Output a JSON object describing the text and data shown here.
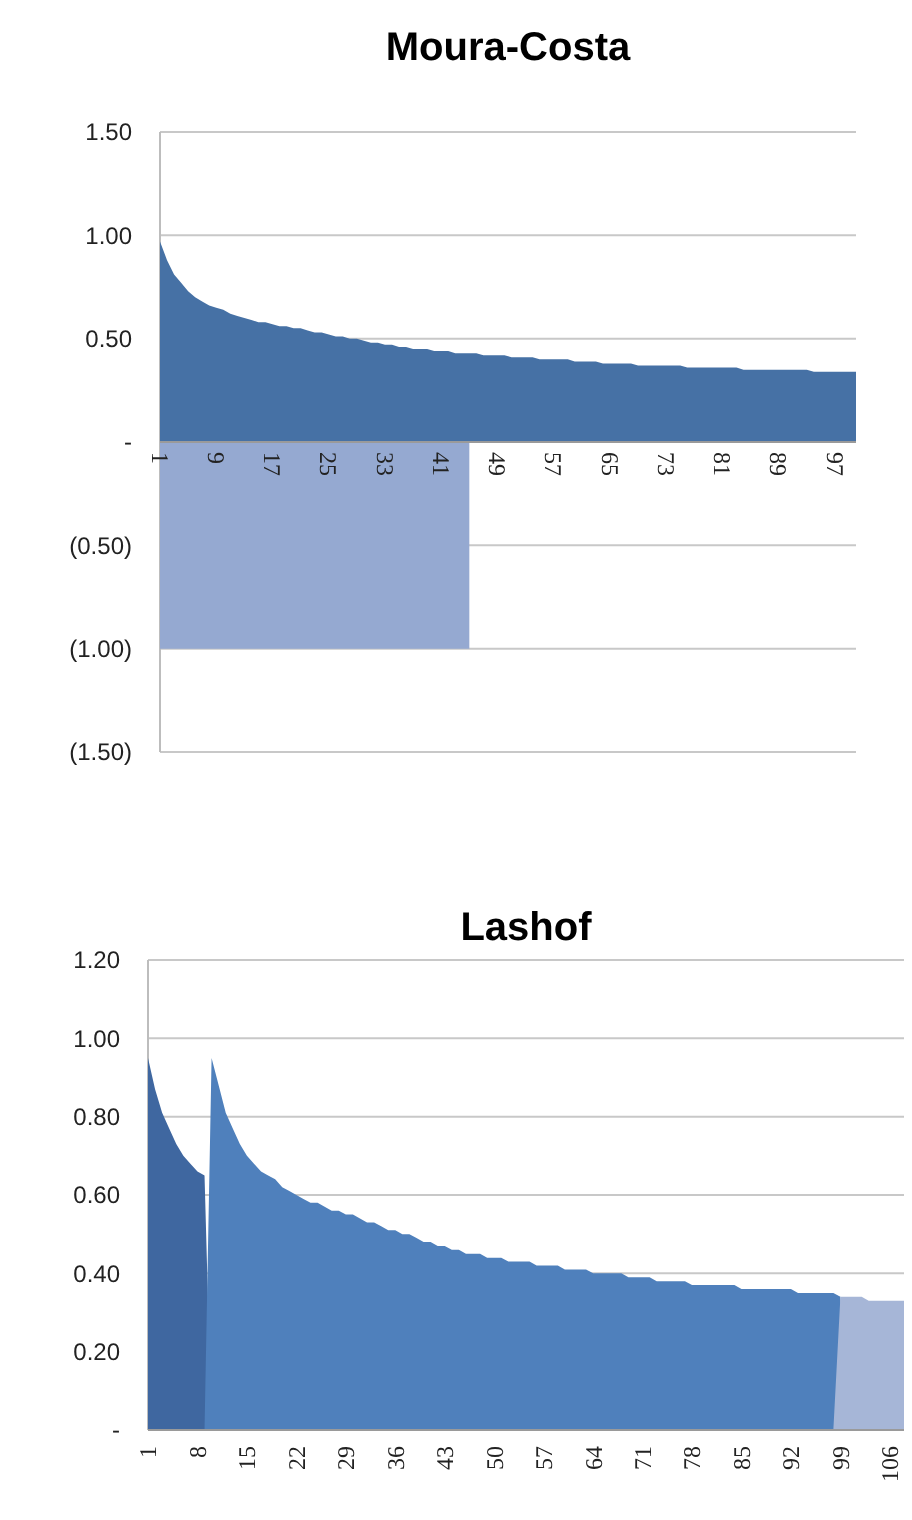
{
  "chart_data": [
    {
      "type": "area",
      "title": "Moura-Costa",
      "categories": [
        "1",
        null,
        null,
        null,
        null,
        null,
        null,
        null,
        "9",
        null,
        null,
        null,
        null,
        null,
        null,
        null,
        "17",
        null,
        null,
        null,
        null,
        null,
        null,
        null,
        "25",
        null,
        null,
        null,
        null,
        null,
        null,
        null,
        "33",
        null,
        null,
        null,
        null,
        null,
        null,
        null,
        "41",
        null,
        null,
        null,
        null,
        null,
        null,
        null,
        "49",
        null,
        null,
        null,
        null,
        null,
        null,
        null,
        "57",
        null,
        null,
        null,
        null,
        null,
        null,
        null,
        "65",
        null,
        null,
        null,
        null,
        null,
        null,
        null,
        "73",
        null,
        null,
        null,
        null,
        null,
        null,
        null,
        "81",
        null,
        null,
        null,
        null,
        null,
        null,
        null,
        "89",
        null,
        null,
        null,
        null,
        null,
        null,
        null,
        "97",
        null,
        null,
        null
      ],
      "series": [
        {
          "color": "#4671a5",
          "values": [
            0.97,
            0.88,
            0.81,
            0.77,
            0.73,
            0.7,
            0.68,
            0.66,
            0.65,
            0.64,
            0.62,
            0.61,
            0.6,
            0.59,
            0.58,
            0.58,
            0.57,
            0.56,
            0.56,
            0.55,
            0.55,
            0.54,
            0.53,
            0.53,
            0.52,
            0.51,
            0.51,
            0.5,
            0.5,
            0.49,
            0.48,
            0.48,
            0.47,
            0.47,
            0.46,
            0.46,
            0.45,
            0.45,
            0.45,
            0.44,
            0.44,
            0.44,
            0.43,
            0.43,
            0.43,
            0.43,
            0.42,
            0.42,
            0.42,
            0.42,
            0.41,
            0.41,
            0.41,
            0.41,
            0.4,
            0.4,
            0.4,
            0.4,
            0.4,
            0.39,
            0.39,
            0.39,
            0.39,
            0.38,
            0.38,
            0.38,
            0.38,
            0.38,
            0.37,
            0.37,
            0.37,
            0.37,
            0.37,
            0.37,
            0.37,
            0.36,
            0.36,
            0.36,
            0.36,
            0.36,
            0.36,
            0.36,
            0.36,
            0.35,
            0.35,
            0.35,
            0.35,
            0.35,
            0.35,
            0.35,
            0.35,
            0.35,
            0.35,
            0.34,
            0.34,
            0.34,
            0.34,
            0.34,
            0.34,
            0.34
          ]
        },
        {
          "color": "#95a9d1",
          "values": [
            -1,
            -1,
            -1,
            -1,
            -1,
            -1,
            -1,
            -1,
            -1,
            -1,
            -1,
            -1,
            -1,
            -1,
            -1,
            -1,
            -1,
            -1,
            -1,
            -1,
            -1,
            -1,
            -1,
            -1,
            -1,
            -1,
            -1,
            -1,
            -1,
            -1,
            -1,
            -1,
            -1,
            -1,
            -1,
            -1,
            -1,
            -1,
            -1,
            -1,
            -1,
            -1,
            -1,
            -1,
            -1,
            null,
            null,
            null,
            null,
            null,
            null,
            null,
            null,
            null,
            null,
            null,
            null,
            null,
            null,
            null,
            null,
            null,
            null,
            null,
            null,
            null,
            null,
            null,
            null,
            null,
            null,
            null,
            null,
            null,
            null,
            null,
            null,
            null,
            null,
            null,
            null,
            null,
            null,
            null,
            null,
            null,
            null,
            null,
            null,
            null,
            null,
            null,
            null,
            null,
            null,
            null,
            null,
            null,
            null,
            null
          ]
        }
      ],
      "ylim": [
        -1.5,
        1.5
      ],
      "yticks": [
        {
          "value": 1.5,
          "label": "1.50"
        },
        {
          "value": 1,
          "label": "1.00"
        },
        {
          "value": 0.5,
          "label": "0.50"
        },
        {
          "value": 0,
          "label": "-"
        },
        {
          "value": -0.5,
          "label": "(0.50)"
        },
        {
          "value": -1,
          "label": "(1.00)"
        },
        {
          "value": -1.5,
          "label": "(1.50)"
        }
      ],
      "grid": "y"
    },
    {
      "type": "area",
      "title": "Lashof",
      "categories": [
        "1",
        null,
        null,
        null,
        null,
        null,
        null,
        "8",
        null,
        null,
        null,
        null,
        null,
        null,
        "15",
        null,
        null,
        null,
        null,
        null,
        null,
        "22",
        null,
        null,
        null,
        null,
        null,
        null,
        "29",
        null,
        null,
        null,
        null,
        null,
        null,
        "36",
        null,
        null,
        null,
        null,
        null,
        null,
        "43",
        null,
        null,
        null,
        null,
        null,
        null,
        "50",
        null,
        null,
        null,
        null,
        null,
        null,
        "57",
        null,
        null,
        null,
        null,
        null,
        null,
        "64",
        null,
        null,
        null,
        null,
        null,
        null,
        "71",
        null,
        null,
        null,
        null,
        null,
        null,
        "78",
        null,
        null,
        null,
        null,
        null,
        null,
        "85",
        null,
        null,
        null,
        null,
        null,
        null,
        "92",
        null,
        null,
        null,
        null,
        null,
        null,
        "99",
        null,
        null,
        null,
        null,
        null,
        null,
        "106",
        null,
        null
      ],
      "series": [
        {
          "color": "#3f67a0",
          "values": [
            0.95,
            0.87,
            0.81,
            0.77,
            0.73,
            0.7,
            0.68,
            0.66,
            0.65,
            0,
            null,
            null,
            null,
            null,
            null,
            null,
            null,
            null,
            null,
            null,
            null,
            null,
            null,
            null,
            null,
            null,
            null,
            null,
            null,
            null,
            null,
            null,
            null,
            null,
            null,
            null,
            null,
            null,
            null,
            null,
            null,
            null,
            null,
            null,
            null,
            null,
            null,
            null,
            null,
            null,
            null,
            null,
            null,
            null,
            null,
            null,
            null,
            null,
            null,
            null,
            null,
            null,
            null,
            null,
            null,
            null,
            null,
            null,
            null,
            null,
            null,
            null,
            null,
            null,
            null,
            null,
            null,
            null,
            null,
            null,
            null,
            null,
            null,
            null,
            null,
            null,
            null,
            null,
            null,
            null,
            null,
            null,
            null,
            null,
            null,
            null,
            null,
            null,
            null,
            null,
            null,
            null,
            null,
            null,
            null,
            null,
            null,
            null
          ]
        },
        {
          "color": "#4f80bc",
          "values": [
            null,
            null,
            null,
            null,
            null,
            null,
            null,
            null,
            0,
            0.95,
            0.88,
            0.81,
            0.77,
            0.73,
            0.7,
            0.68,
            0.66,
            0.65,
            0.64,
            0.62,
            0.61,
            0.6,
            0.59,
            0.58,
            0.58,
            0.57,
            0.56,
            0.56,
            0.55,
            0.55,
            0.54,
            0.53,
            0.53,
            0.52,
            0.51,
            0.51,
            0.5,
            0.5,
            0.49,
            0.48,
            0.48,
            0.47,
            0.47,
            0.46,
            0.46,
            0.45,
            0.45,
            0.45,
            0.44,
            0.44,
            0.44,
            0.43,
            0.43,
            0.43,
            0.43,
            0.42,
            0.42,
            0.42,
            0.42,
            0.41,
            0.41,
            0.41,
            0.41,
            0.4,
            0.4,
            0.4,
            0.4,
            0.4,
            0.39,
            0.39,
            0.39,
            0.39,
            0.38,
            0.38,
            0.38,
            0.38,
            0.38,
            0.37,
            0.37,
            0.37,
            0.37,
            0.37,
            0.37,
            0.37,
            0.36,
            0.36,
            0.36,
            0.36,
            0.36,
            0.36,
            0.36,
            0.36,
            0.35,
            0.35,
            0.35,
            0.35,
            0.35,
            0.35,
            0.34,
            0,
            null,
            null,
            null,
            null,
            null,
            null,
            null,
            null
          ]
        },
        {
          "color": "#a6b6d7",
          "values": [
            null,
            null,
            null,
            null,
            null,
            null,
            null,
            null,
            null,
            null,
            null,
            null,
            null,
            null,
            null,
            null,
            null,
            null,
            null,
            null,
            null,
            null,
            null,
            null,
            null,
            null,
            null,
            null,
            null,
            null,
            null,
            null,
            null,
            null,
            null,
            null,
            null,
            null,
            null,
            null,
            null,
            null,
            null,
            null,
            null,
            null,
            null,
            null,
            null,
            null,
            null,
            null,
            null,
            null,
            null,
            null,
            null,
            null,
            null,
            null,
            null,
            null,
            null,
            null,
            null,
            null,
            null,
            null,
            null,
            null,
            null,
            null,
            null,
            null,
            null,
            null,
            null,
            null,
            null,
            null,
            null,
            null,
            null,
            null,
            null,
            null,
            null,
            null,
            null,
            null,
            null,
            null,
            null,
            null,
            null,
            null,
            null,
            0,
            0.34,
            0.34,
            0.34,
            0.34,
            0.33,
            0.33,
            0.33,
            0.33,
            0.33,
            0.33
          ]
        }
      ],
      "ylim": [
        0,
        1.2
      ],
      "yticks": [
        {
          "value": 1.2,
          "label": "1.20"
        },
        {
          "value": 1,
          "label": "1.00"
        },
        {
          "value": 0.8,
          "label": "0.80"
        },
        {
          "value": 0.6,
          "label": "0.60"
        },
        {
          "value": 0.4,
          "label": "0.40"
        },
        {
          "value": 0.2,
          "label": "0.20"
        },
        {
          "value": 0,
          "label": "-"
        }
      ],
      "grid": "y"
    }
  ]
}
